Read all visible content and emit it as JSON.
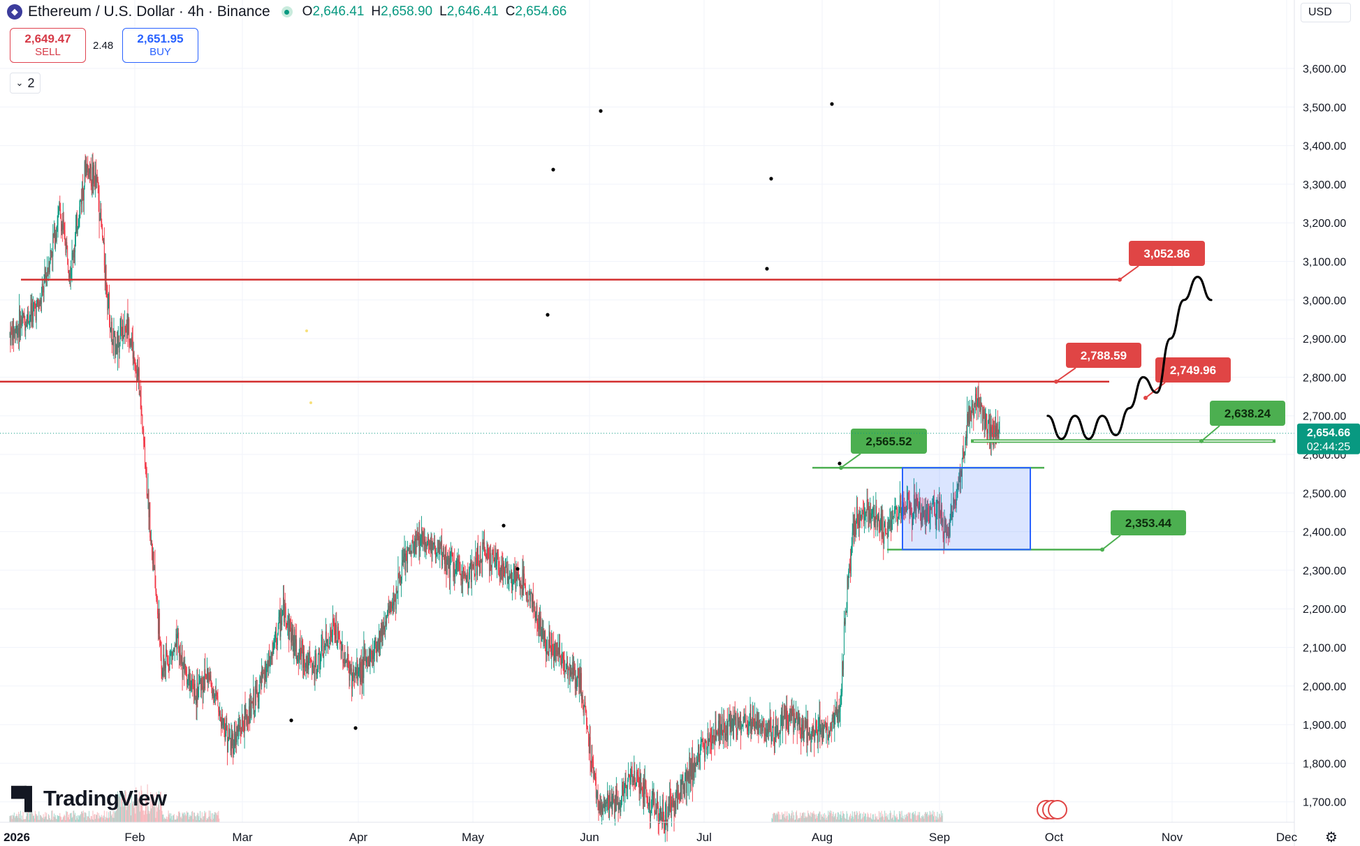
{
  "header": {
    "symbol_title": "Ethereum / U.S. Dollar · 4h · Binance",
    "ohlc": [
      {
        "key": "O",
        "value": "2,646.41"
      },
      {
        "key": "H",
        "value": "2,658.90"
      },
      {
        "key": "L",
        "value": "2,646.41"
      },
      {
        "key": "C",
        "value": "2,654.66"
      }
    ]
  },
  "trade": {
    "sell_price": "2,649.47",
    "sell_label": "SELL",
    "spread": "2.48",
    "buy_price": "2,651.95",
    "buy_label": "BUY"
  },
  "indicators_toggle": {
    "count": "2"
  },
  "currency": "USD",
  "branding": {
    "logo_text": "TradingView"
  },
  "colors": {
    "up": "#089981",
    "down": "#f23645",
    "resistance": "#d32f2f",
    "support": "#4caf50",
    "range_box": "#2962ff",
    "price_label": "#089981"
  },
  "chart_data": {
    "type": "candlestick",
    "symbol": "ETHUSD",
    "interval": "4h",
    "y_axis": {
      "min": 1650,
      "max": 3700,
      "ticks": [
        "3,600.00",
        "3,500.00",
        "3,400.00",
        "3,300.00",
        "3,200.00",
        "3,100.00",
        "3,000.00",
        "2,900.00",
        "2,800.00",
        "2,700.00",
        "2,600.00",
        "2,500.00",
        "2,400.00",
        "2,300.00",
        "2,200.00",
        "2,100.00",
        "2,000.00",
        "1,900.00",
        "1,800.00",
        "1,700.00"
      ]
    },
    "x_axis": {
      "labels": [
        "2026",
        "Feb",
        "Mar",
        "Apr",
        "May",
        "Jun",
        "Jul",
        "Aug",
        "Sep",
        "Oct",
        "Nov",
        "Dec"
      ]
    },
    "price_anchors": [
      {
        "d": 0,
        "p": 2910
      },
      {
        "d": 8,
        "p": 2990
      },
      {
        "d": 13,
        "p": 3230
      },
      {
        "d": 16,
        "p": 3080
      },
      {
        "d": 20,
        "p": 3350
      },
      {
        "d": 23,
        "p": 3300
      },
      {
        "d": 27,
        "p": 2880
      },
      {
        "d": 31,
        "p": 2940
      },
      {
        "d": 34,
        "p": 2780
      },
      {
        "d": 37,
        "p": 2400
      },
      {
        "d": 40,
        "p": 2050
      },
      {
        "d": 44,
        "p": 2100
      },
      {
        "d": 48,
        "p": 1980
      },
      {
        "d": 52,
        "p": 2030
      },
      {
        "d": 58,
        "p": 1850
      },
      {
        "d": 63,
        "p": 1930
      },
      {
        "d": 68,
        "p": 2050
      },
      {
        "d": 72,
        "p": 2200
      },
      {
        "d": 75,
        "p": 2100
      },
      {
        "d": 80,
        "p": 2040
      },
      {
        "d": 85,
        "p": 2150
      },
      {
        "d": 90,
        "p": 2020
      },
      {
        "d": 95,
        "p": 2080
      },
      {
        "d": 100,
        "p": 2200
      },
      {
        "d": 104,
        "p": 2330
      },
      {
        "d": 108,
        "p": 2390
      },
      {
        "d": 115,
        "p": 2320
      },
      {
        "d": 120,
        "p": 2280
      },
      {
        "d": 125,
        "p": 2350
      },
      {
        "d": 130,
        "p": 2300
      },
      {
        "d": 136,
        "p": 2250
      },
      {
        "d": 140,
        "p": 2130
      },
      {
        "d": 145,
        "p": 2070
      },
      {
        "d": 150,
        "p": 2000
      },
      {
        "d": 153,
        "p": 1800
      },
      {
        "d": 155,
        "p": 1680
      },
      {
        "d": 160,
        "p": 1700
      },
      {
        "d": 164,
        "p": 1780
      },
      {
        "d": 168,
        "p": 1700
      },
      {
        "d": 172,
        "p": 1660
      },
      {
        "d": 176,
        "p": 1730
      },
      {
        "d": 180,
        "p": 1800
      },
      {
        "d": 185,
        "p": 1880
      },
      {
        "d": 190,
        "p": 1900
      },
      {
        "d": 195,
        "p": 1910
      },
      {
        "d": 200,
        "p": 1880
      },
      {
        "d": 205,
        "p": 1920
      },
      {
        "d": 210,
        "p": 1880
      },
      {
        "d": 215,
        "p": 1890
      },
      {
        "d": 218,
        "p": 1920
      },
      {
        "d": 220,
        "p": 2270
      },
      {
        "d": 222,
        "p": 2430
      },
      {
        "d": 226,
        "p": 2460
      },
      {
        "d": 230,
        "p": 2400
      },
      {
        "d": 235,
        "p": 2470
      },
      {
        "d": 240,
        "p": 2440
      },
      {
        "d": 244,
        "p": 2460
      },
      {
        "d": 246,
        "p": 2380
      },
      {
        "d": 248,
        "p": 2470
      },
      {
        "d": 250,
        "p": 2560
      },
      {
        "d": 252,
        "p": 2700
      },
      {
        "d": 254,
        "p": 2740
      },
      {
        "d": 256,
        "p": 2690
      },
      {
        "d": 258,
        "p": 2660
      },
      {
        "d": 260,
        "p": 2654
      }
    ],
    "last_price": {
      "value": "2,654.66",
      "countdown": "02:44:25"
    },
    "annotations": {
      "resistance_lines": [
        {
          "price": 3052.86,
          "label": "3,052.86"
        },
        {
          "price": 2788.59,
          "label": "2,788.59"
        }
      ],
      "price_callouts": [
        {
          "price": 2749.96,
          "label": "2,749.96",
          "color": "red"
        },
        {
          "price": 2638.24,
          "label": "2,638.24",
          "color": "green"
        },
        {
          "price": 2565.52,
          "label": "2,565.52",
          "color": "green"
        },
        {
          "price": 2353.44,
          "label": "2,353.44",
          "color": "green"
        }
      ],
      "range_box": {
        "price_top": 2565.52,
        "price_bottom": 2353.44
      },
      "projected_path": [
        2700,
        2640,
        2700,
        2640,
        2700,
        2650,
        2720,
        2800,
        2760,
        2900,
        3000,
        3060,
        3000
      ]
    }
  }
}
